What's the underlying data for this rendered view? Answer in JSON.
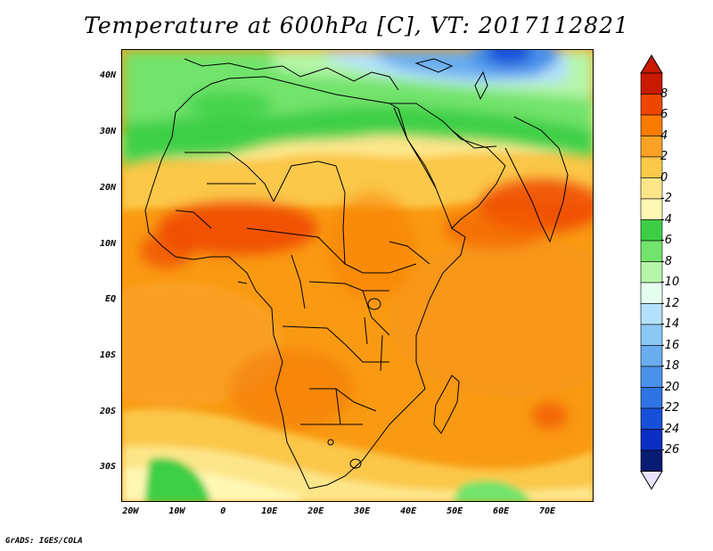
{
  "title": "Temperature at 600hPa [C], VT: 2017112821",
  "credit": "GrADS: IGES/COLA",
  "map": {
    "lon_range": [
      -22,
      80
    ],
    "lat_range": [
      -36,
      45
    ],
    "lat_labels": [
      {
        "lat": 40,
        "text": "40N"
      },
      {
        "lat": 30,
        "text": "30N"
      },
      {
        "lat": 20,
        "text": "20N"
      },
      {
        "lat": 10,
        "text": "10N"
      },
      {
        "lat": 0,
        "text": "EQ"
      },
      {
        "lat": -10,
        "text": "10S"
      },
      {
        "lat": -20,
        "text": "20S"
      },
      {
        "lat": -30,
        "text": "30S"
      }
    ],
    "lon_labels": [
      {
        "lon": -20,
        "text": "20W"
      },
      {
        "lon": -10,
        "text": "10W"
      },
      {
        "lon": 0,
        "text": "0"
      },
      {
        "lon": 10,
        "text": "10E"
      },
      {
        "lon": 20,
        "text": "20E"
      },
      {
        "lon": 30,
        "text": "30E"
      },
      {
        "lon": 40,
        "text": "40E"
      },
      {
        "lon": 50,
        "text": "50E"
      },
      {
        "lon": 60,
        "text": "60E"
      },
      {
        "lon": 70,
        "text": "70E"
      }
    ]
  },
  "colorbar": {
    "labels": [
      "8",
      "6",
      "4",
      "2",
      "0",
      "-2",
      "-4",
      "-6",
      "-8",
      "-10",
      "-12",
      "-14",
      "-16",
      "-18",
      "-20",
      "-22",
      "-24",
      "-26"
    ],
    "colors_top_to_bottom": [
      "#c81a00",
      "#ee4600",
      "#fa7b00",
      "#f9a226",
      "#fbc84a",
      "#fde68a",
      "#fff7b4",
      "#3ccf46",
      "#72e36c",
      "#b5f6a9",
      "#e4fff0",
      "#b3e1fb",
      "#8cc8f4",
      "#69adef",
      "#4a91ea",
      "#2f74e3",
      "#1750d8",
      "#0a2ec3",
      "#081c73"
    ],
    "end_top_color": "#c81a00",
    "end_bottom_color": "#e8e2ff"
  }
}
